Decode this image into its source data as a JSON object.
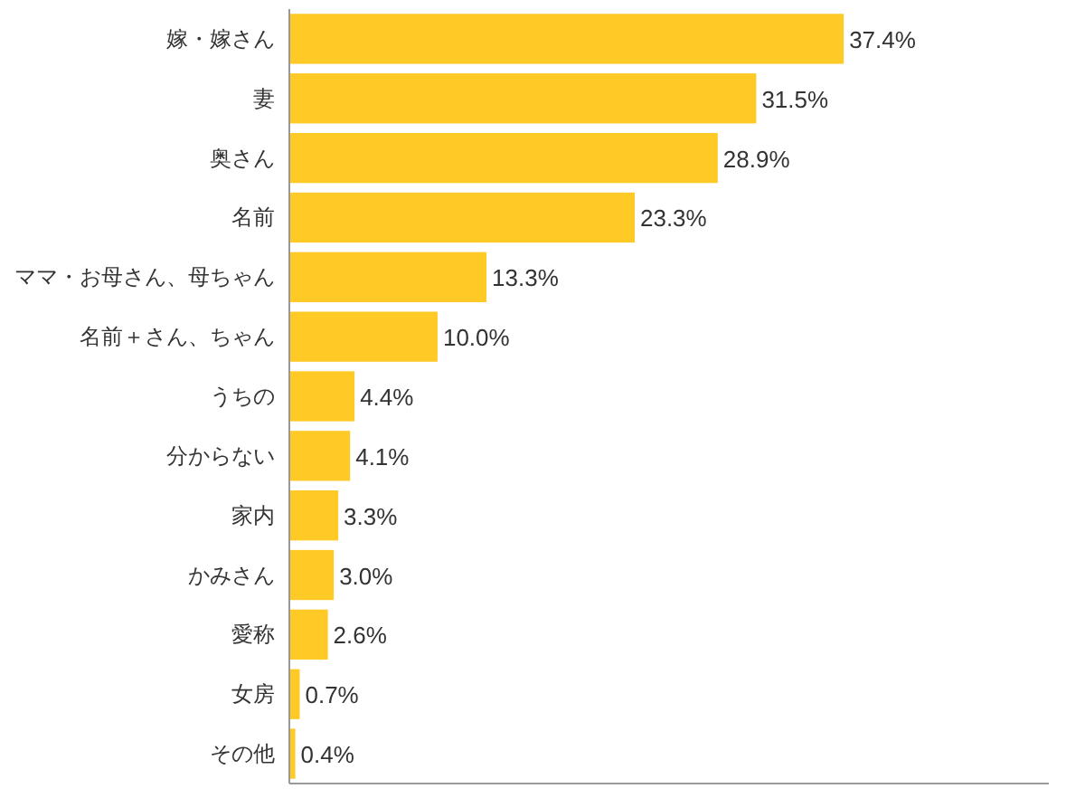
{
  "chart_data": {
    "type": "bar",
    "orientation": "horizontal",
    "color": "#ffc926",
    "categories": [
      "嫁・嫁さん",
      "妻",
      "奥さん",
      "名前",
      "ママ・お母さん、母ちゃん",
      "名前＋さん、ちゃん",
      "うちの",
      "分からない",
      "家内",
      "かみさん",
      "愛称",
      "女房",
      "その他"
    ],
    "values": [
      37.4,
      31.5,
      28.9,
      23.3,
      13.3,
      10.0,
      4.4,
      4.1,
      3.3,
      3.0,
      2.6,
      0.7,
      0.4
    ],
    "value_labels": [
      "37.4%",
      "31.5%",
      "28.9%",
      "23.3%",
      "13.3%",
      "10.0%",
      "4.4%",
      "4.1%",
      "3.3%",
      "3.0%",
      "2.6%",
      "0.7%",
      "0.4%"
    ]
  }
}
